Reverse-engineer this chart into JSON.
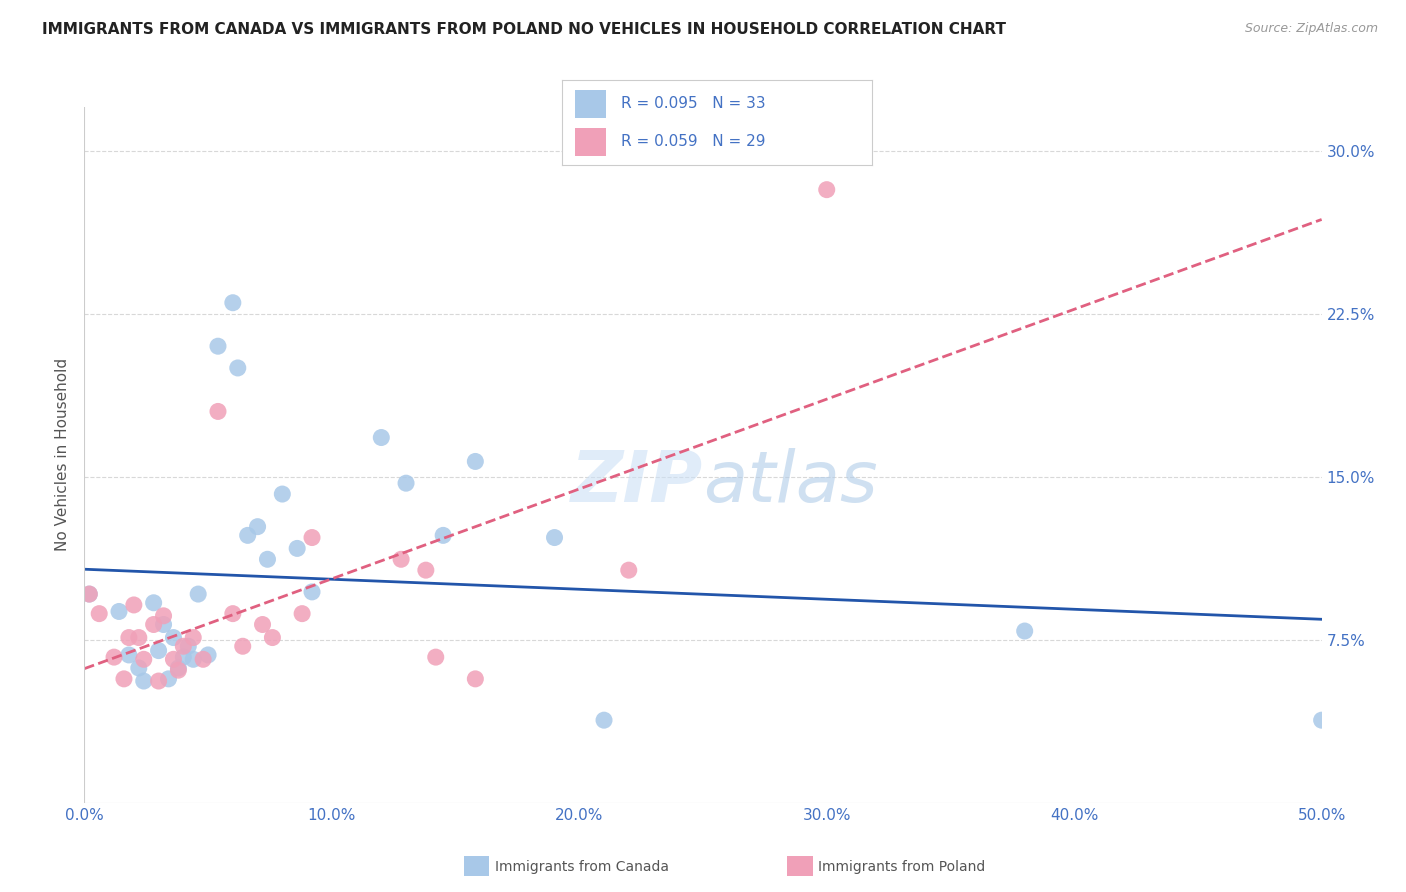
{
  "title": "IMMIGRANTS FROM CANADA VS IMMIGRANTS FROM POLAND NO VEHICLES IN HOUSEHOLD CORRELATION CHART",
  "source": "Source: ZipAtlas.com",
  "ylabel": "No Vehicles in Household",
  "xlim": [
    0.0,
    0.5
  ],
  "ylim": [
    0.0,
    0.32
  ],
  "xticks": [
    0.0,
    0.1,
    0.2,
    0.3,
    0.4,
    0.5
  ],
  "xticklabels": [
    "0.0%",
    "10.0%",
    "20.0%",
    "30.0%",
    "40.0%",
    "50.0%"
  ],
  "yticks_right": [
    0.075,
    0.15,
    0.225,
    0.3
  ],
  "yticklabels_right": [
    "7.5%",
    "15.0%",
    "22.5%",
    "30.0%"
  ],
  "canada_color": "#a8c8e8",
  "poland_color": "#f0a0b8",
  "canada_line_color": "#2255aa",
  "poland_line_color": "#e06080",
  "canada_R": 0.095,
  "canada_N": 33,
  "poland_R": 0.059,
  "poland_N": 29,
  "legend_R_N_color": "#4472c4",
  "canada_x": [
    0.002,
    0.014,
    0.018,
    0.022,
    0.024,
    0.028,
    0.03,
    0.032,
    0.034,
    0.036,
    0.038,
    0.04,
    0.042,
    0.044,
    0.046,
    0.05,
    0.054,
    0.06,
    0.062,
    0.066,
    0.07,
    0.074,
    0.08,
    0.086,
    0.092,
    0.12,
    0.13,
    0.145,
    0.158,
    0.19,
    0.21,
    0.38,
    0.5
  ],
  "canada_y": [
    0.096,
    0.088,
    0.068,
    0.062,
    0.056,
    0.092,
    0.07,
    0.082,
    0.057,
    0.076,
    0.062,
    0.067,
    0.072,
    0.066,
    0.096,
    0.068,
    0.21,
    0.23,
    0.2,
    0.123,
    0.127,
    0.112,
    0.142,
    0.117,
    0.097,
    0.168,
    0.147,
    0.123,
    0.157,
    0.122,
    0.038,
    0.079,
    0.038
  ],
  "poland_x": [
    0.002,
    0.006,
    0.012,
    0.016,
    0.018,
    0.02,
    0.022,
    0.024,
    0.028,
    0.03,
    0.032,
    0.036,
    0.038,
    0.04,
    0.044,
    0.048,
    0.054,
    0.06,
    0.064,
    0.072,
    0.076,
    0.088,
    0.092,
    0.128,
    0.138,
    0.142,
    0.158,
    0.22,
    0.3
  ],
  "poland_y": [
    0.096,
    0.087,
    0.067,
    0.057,
    0.076,
    0.091,
    0.076,
    0.066,
    0.082,
    0.056,
    0.086,
    0.066,
    0.061,
    0.072,
    0.076,
    0.066,
    0.18,
    0.087,
    0.072,
    0.082,
    0.076,
    0.087,
    0.122,
    0.112,
    0.107,
    0.067,
    0.057,
    0.107,
    0.282
  ],
  "watermark_zip": "ZIP",
  "watermark_atlas": "atlas",
  "background_color": "#ffffff",
  "grid_color": "#d8d8d8",
  "bottom_legend_canada": "Immigrants from Canada",
  "bottom_legend_poland": "Immigrants from Poland"
}
